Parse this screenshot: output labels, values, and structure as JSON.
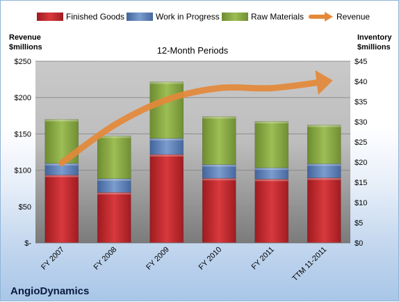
{
  "chart_data": {
    "type": "bar",
    "stacked": true,
    "subtitle": "12-Month Periods",
    "brand": "AngioDynamics",
    "categories": [
      "FY 2007",
      "FY 2008",
      "FY 2009",
      "FY 2010",
      "FY 2011",
      "TTM 11-2011"
    ],
    "left_axis": {
      "title_line1": "Revenue",
      "title_line2": "$millions",
      "ylim": [
        0,
        250
      ],
      "ticks": [
        0,
        50,
        100,
        150,
        200,
        250
      ],
      "tick_labels": [
        "$-",
        "$50",
        "$100",
        "$150",
        "$200",
        "$250"
      ]
    },
    "right_axis": {
      "title_line1": "Inventory",
      "title_line2": "$millions",
      "ylim": [
        0,
        45
      ],
      "ticks": [
        0,
        5,
        10,
        15,
        20,
        25,
        30,
        35,
        40,
        45
      ],
      "tick_labels": [
        "$0",
        "$5",
        "$10",
        "$15",
        "$20",
        "$25",
        "$30",
        "$35",
        "$40",
        "$45"
      ]
    },
    "series": [
      {
        "name": "Finished Goods",
        "axis": "right",
        "color": "#c0272d",
        "values": [
          16.8,
          12.5,
          21.9,
          16.0,
          15.8,
          16.1
        ]
      },
      {
        "name": "Work in Progress",
        "axis": "right",
        "color": "#5b7fb8",
        "values": [
          2.9,
          3.4,
          4.0,
          3.4,
          2.8,
          3.5
        ]
      },
      {
        "name": "Raw Materials",
        "axis": "right",
        "color": "#8bab45",
        "values": [
          10.9,
          10.6,
          14.0,
          11.9,
          11.5,
          9.6
        ]
      },
      {
        "name": "Revenue",
        "axis": "left",
        "type": "line",
        "color": "#e4893a",
        "values": [
          110,
          162,
          197,
          213,
          213,
          222
        ]
      }
    ],
    "legend_position": "top",
    "grid": true
  }
}
